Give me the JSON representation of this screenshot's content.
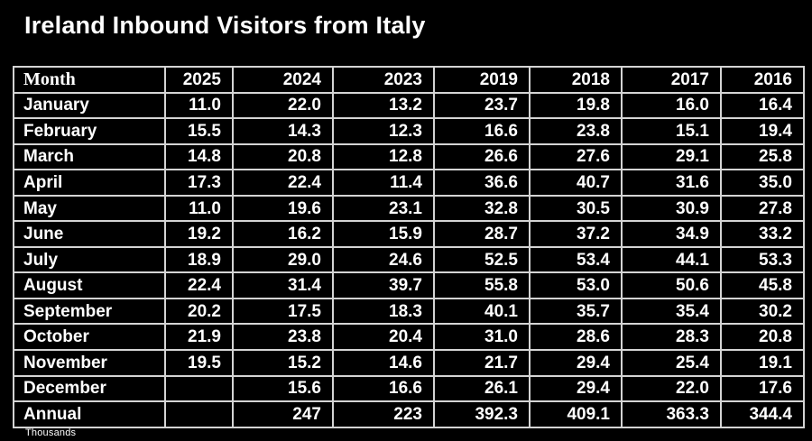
{
  "title": "Ireland Inbound Visitors from Italy",
  "footnote": "Thousands",
  "colors": {
    "background": "#000000",
    "text": "#ffffff",
    "border": "#d4d4d4"
  },
  "chart_data": {
    "type": "table",
    "title": "Ireland Inbound Visitors from Italy",
    "unit": "Thousands",
    "columns": [
      "Month",
      "2025",
      "2024",
      "2023",
      "2019",
      "2018",
      "2017",
      "2016"
    ],
    "rows": [
      [
        "January",
        "11.0",
        "22.0",
        "13.2",
        "23.7",
        "19.8",
        "16.0",
        "16.4"
      ],
      [
        "February",
        "15.5",
        "14.3",
        "12.3",
        "16.6",
        "23.8",
        "15.1",
        "19.4"
      ],
      [
        "March",
        "14.8",
        "20.8",
        "12.8",
        "26.6",
        "27.6",
        "29.1",
        "25.8"
      ],
      [
        "April",
        "17.3",
        "22.4",
        "11.4",
        "36.6",
        "40.7",
        "31.6",
        "35.0"
      ],
      [
        "May",
        "11.0",
        "19.6",
        "23.1",
        "32.8",
        "30.5",
        "30.9",
        "27.8"
      ],
      [
        "June",
        "19.2",
        "16.2",
        "15.9",
        "28.7",
        "37.2",
        "34.9",
        "33.2"
      ],
      [
        "July",
        "18.9",
        "29.0",
        "24.6",
        "52.5",
        "53.4",
        "44.1",
        "53.3"
      ],
      [
        "August",
        "22.4",
        "31.4",
        "39.7",
        "55.8",
        "53.0",
        "50.6",
        "45.8"
      ],
      [
        "September",
        "20.2",
        "17.5",
        "18.3",
        "40.1",
        "35.7",
        "35.4",
        "30.2"
      ],
      [
        "October",
        "21.9",
        "23.8",
        "20.4",
        "31.0",
        "28.6",
        "28.3",
        "20.8"
      ],
      [
        "November",
        "19.5",
        "15.2",
        "14.6",
        "21.7",
        "29.4",
        "25.4",
        "19.1"
      ],
      [
        "December",
        "",
        "15.6",
        "16.6",
        "26.1",
        "29.4",
        "22.0",
        "17.6"
      ],
      [
        "Annual",
        "",
        "247",
        "223",
        "392.3",
        "409.1",
        "363.3",
        "344.4"
      ]
    ]
  }
}
